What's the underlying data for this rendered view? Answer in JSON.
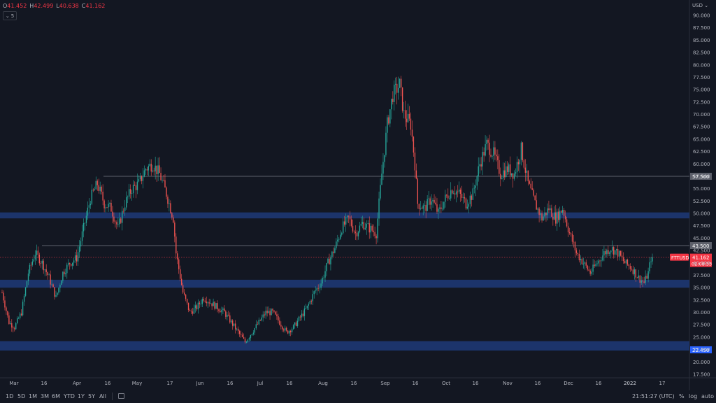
{
  "header": {
    "ohlc": [
      {
        "k": "O",
        "v": "41.452"
      },
      {
        "k": "H",
        "v": "42.499"
      },
      {
        "k": "L",
        "v": "40.638"
      },
      {
        "k": "C",
        "v": "41.162"
      }
    ],
    "collapse_count": "5",
    "currency": "USD"
  },
  "colors": {
    "background": "#131722",
    "up": "#26a69a",
    "down": "#ef5350",
    "zone": "#1e3a78",
    "price_tag": "#f23645",
    "support_tag": "#2962ff"
  },
  "chart_data": {
    "type": "candlestick",
    "symbol": "FTTUSD",
    "y_axis": {
      "range": [
        15.0,
        92.5
      ],
      "ticks": [
        "17.500",
        "20.000",
        "22.500",
        "25.000",
        "27.500",
        "30.000",
        "32.500",
        "35.000",
        "37.500",
        "40.000",
        "42.500",
        "45.000",
        "47.500",
        "50.000",
        "52.500",
        "55.000",
        "57.500",
        "60.000",
        "62.500",
        "65.000",
        "67.500",
        "70.000",
        "72.500",
        "75.000",
        "77.500",
        "80.000",
        "82.500",
        "85.000",
        "87.500",
        "90.000"
      ]
    },
    "x_axis": {
      "ticks": [
        "Mar",
        "16",
        "Apr",
        "16",
        "May",
        "17",
        "Jun",
        "16",
        "Jul",
        "16",
        "Aug",
        "16",
        "Sep",
        "16",
        "Oct",
        "16",
        "Nov",
        "16",
        "Dec",
        "16",
        "2022",
        "17"
      ]
    },
    "zones": [
      {
        "low": 49.0,
        "high": 50.2
      },
      {
        "low": 35.0,
        "high": 36.6
      },
      {
        "low": 22.3,
        "high": 24.2
      }
    ],
    "levels": [
      {
        "price": 57.5,
        "label": "57.500"
      },
      {
        "price": 43.5,
        "label": "43.500"
      }
    ],
    "support_label": {
      "price": 22.45,
      "label": "22.450"
    },
    "last_price": {
      "price": 41.162,
      "label": "41.162",
      "countdown": "02:08:33"
    },
    "anchors": [
      [
        0,
        34
      ],
      [
        5,
        28
      ],
      [
        9,
        27
      ],
      [
        14,
        30
      ],
      [
        19,
        38
      ],
      [
        24,
        42
      ],
      [
        29,
        40
      ],
      [
        34,
        37
      ],
      [
        39,
        33
      ],
      [
        44,
        38
      ],
      [
        49,
        40
      ],
      [
        54,
        41
      ],
      [
        59,
        47
      ],
      [
        64,
        53
      ],
      [
        69,
        56
      ],
      [
        74,
        52
      ],
      [
        79,
        51
      ],
      [
        84,
        47
      ],
      [
        89,
        52
      ],
      [
        94,
        55
      ],
      [
        99,
        56
      ],
      [
        104,
        59
      ],
      [
        109,
        60
      ],
      [
        114,
        58
      ],
      [
        119,
        54
      ],
      [
        124,
        49
      ],
      [
        126,
        42
      ],
      [
        131,
        34
      ],
      [
        136,
        30
      ],
      [
        141,
        31
      ],
      [
        146,
        33
      ],
      [
        151,
        32
      ],
      [
        156,
        31
      ],
      [
        161,
        30
      ],
      [
        166,
        28
      ],
      [
        171,
        26
      ],
      [
        176,
        24
      ],
      [
        181,
        26
      ],
      [
        186,
        28
      ],
      [
        191,
        30
      ],
      [
        196,
        30
      ],
      [
        201,
        28
      ],
      [
        206,
        26
      ],
      [
        211,
        27
      ],
      [
        216,
        29
      ],
      [
        221,
        31
      ],
      [
        226,
        34
      ],
      [
        231,
        36
      ],
      [
        236,
        40
      ],
      [
        241,
        43
      ],
      [
        246,
        47
      ],
      [
        251,
        49
      ],
      [
        256,
        46
      ],
      [
        261,
        48
      ],
      [
        266,
        47
      ],
      [
        271,
        46
      ],
      [
        275,
        58
      ],
      [
        279,
        68
      ],
      [
        283,
        74
      ],
      [
        288,
        76
      ],
      [
        291,
        70
      ],
      [
        296,
        68
      ],
      [
        299,
        60
      ],
      [
        301,
        52
      ],
      [
        306,
        51
      ],
      [
        311,
        53
      ],
      [
        316,
        50
      ],
      [
        321,
        53
      ],
      [
        326,
        55
      ],
      [
        331,
        54
      ],
      [
        336,
        52
      ],
      [
        341,
        54
      ],
      [
        346,
        60
      ],
      [
        351,
        64
      ],
      [
        356,
        62
      ],
      [
        361,
        58
      ],
      [
        366,
        59
      ],
      [
        371,
        58
      ],
      [
        376,
        63
      ],
      [
        381,
        56
      ],
      [
        386,
        52
      ],
      [
        391,
        49
      ],
      [
        396,
        51
      ],
      [
        401,
        49
      ],
      [
        406,
        51
      ],
      [
        411,
        46
      ],
      [
        416,
        42
      ],
      [
        421,
        40
      ],
      [
        426,
        38
      ],
      [
        431,
        40
      ],
      [
        436,
        42
      ],
      [
        441,
        43
      ],
      [
        446,
        42
      ],
      [
        451,
        40
      ],
      [
        456,
        39
      ],
      [
        461,
        37
      ],
      [
        465,
        36
      ],
      [
        468,
        38
      ],
      [
        470,
        41
      ],
      [
        471,
        41.162
      ]
    ],
    "candle_count": 472
  },
  "bottom": {
    "ranges": [
      "1D",
      "5D",
      "1M",
      "3M",
      "6M",
      "YTD",
      "1Y",
      "5Y",
      "All"
    ],
    "clock": "21:51:27 (UTC)",
    "options": [
      "%",
      "log",
      "auto"
    ]
  }
}
